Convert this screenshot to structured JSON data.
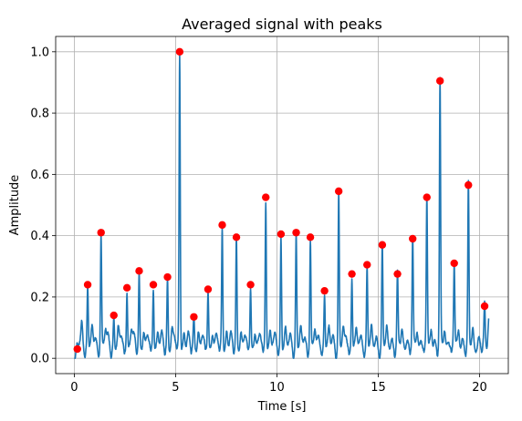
{
  "chart_data": {
    "type": "line",
    "title": "Averaged signal with peaks",
    "xlabel": "Time [s]",
    "ylabel": "Amplitude",
    "xlim": [
      -0.92,
      21.42
    ],
    "ylim": [
      -0.05,
      1.05
    ],
    "xticks": [
      0,
      5,
      10,
      15,
      20
    ],
    "yticks": [
      0.0,
      0.2,
      0.4,
      0.6,
      0.8,
      1.0
    ],
    "xtick_labels": [
      "0",
      "5",
      "10",
      "15",
      "20"
    ],
    "ytick_labels": [
      "0.0",
      "0.2",
      "0.4",
      "0.6",
      "0.8",
      "1.0"
    ],
    "grid": true,
    "series": [
      {
        "kind": "line",
        "color": "#1f77b4",
        "base_level": 0.04,
        "baseline_end": 0.13,
        "x_end": 20.45,
        "beats": [
          {
            "x": 0.15,
            "y": 0.03
          },
          {
            "x": 0.66,
            "y": 0.24
          },
          {
            "x": 1.32,
            "y": 0.41
          },
          {
            "x": 1.95,
            "y": 0.14
          },
          {
            "x": 2.6,
            "y": 0.23
          },
          {
            "x": 3.2,
            "y": 0.285
          },
          {
            "x": 3.9,
            "y": 0.24
          },
          {
            "x": 4.6,
            "y": 0.265
          },
          {
            "x": 5.2,
            "y": 1.0
          },
          {
            "x": 5.9,
            "y": 0.135
          },
          {
            "x": 6.6,
            "y": 0.225
          },
          {
            "x": 7.3,
            "y": 0.435
          },
          {
            "x": 8.0,
            "y": 0.395
          },
          {
            "x": 8.7,
            "y": 0.24
          },
          {
            "x": 9.45,
            "y": 0.525
          },
          {
            "x": 10.2,
            "y": 0.405
          },
          {
            "x": 10.95,
            "y": 0.41
          },
          {
            "x": 11.65,
            "y": 0.395
          },
          {
            "x": 12.35,
            "y": 0.22
          },
          {
            "x": 13.05,
            "y": 0.545
          },
          {
            "x": 13.7,
            "y": 0.275
          },
          {
            "x": 14.45,
            "y": 0.305
          },
          {
            "x": 15.2,
            "y": 0.37
          },
          {
            "x": 15.95,
            "y": 0.275
          },
          {
            "x": 16.7,
            "y": 0.39
          },
          {
            "x": 17.4,
            "y": 0.525
          },
          {
            "x": 18.05,
            "y": 0.905
          },
          {
            "x": 18.75,
            "y": 0.31
          },
          {
            "x": 19.45,
            "y": 0.565
          },
          {
            "x": 20.25,
            "y": 0.17
          }
        ]
      },
      {
        "kind": "scatter",
        "color": "#ff0000",
        "points": [
          [
            0.15,
            0.03
          ],
          [
            0.66,
            0.24
          ],
          [
            1.32,
            0.41
          ],
          [
            1.95,
            0.14
          ],
          [
            2.6,
            0.23
          ],
          [
            3.2,
            0.285
          ],
          [
            3.9,
            0.24
          ],
          [
            4.6,
            0.265
          ],
          [
            5.2,
            1.0
          ],
          [
            5.9,
            0.135
          ],
          [
            6.6,
            0.225
          ],
          [
            7.3,
            0.435
          ],
          [
            8.0,
            0.395
          ],
          [
            8.7,
            0.24
          ],
          [
            9.45,
            0.525
          ],
          [
            10.2,
            0.405
          ],
          [
            10.95,
            0.41
          ],
          [
            11.65,
            0.395
          ],
          [
            12.35,
            0.22
          ],
          [
            13.05,
            0.545
          ],
          [
            13.7,
            0.275
          ],
          [
            14.45,
            0.305
          ],
          [
            15.2,
            0.37
          ],
          [
            15.95,
            0.275
          ],
          [
            16.7,
            0.39
          ],
          [
            17.4,
            0.525
          ],
          [
            18.05,
            0.905
          ],
          [
            18.75,
            0.31
          ],
          [
            19.45,
            0.565
          ],
          [
            20.25,
            0.17
          ]
        ]
      }
    ]
  }
}
